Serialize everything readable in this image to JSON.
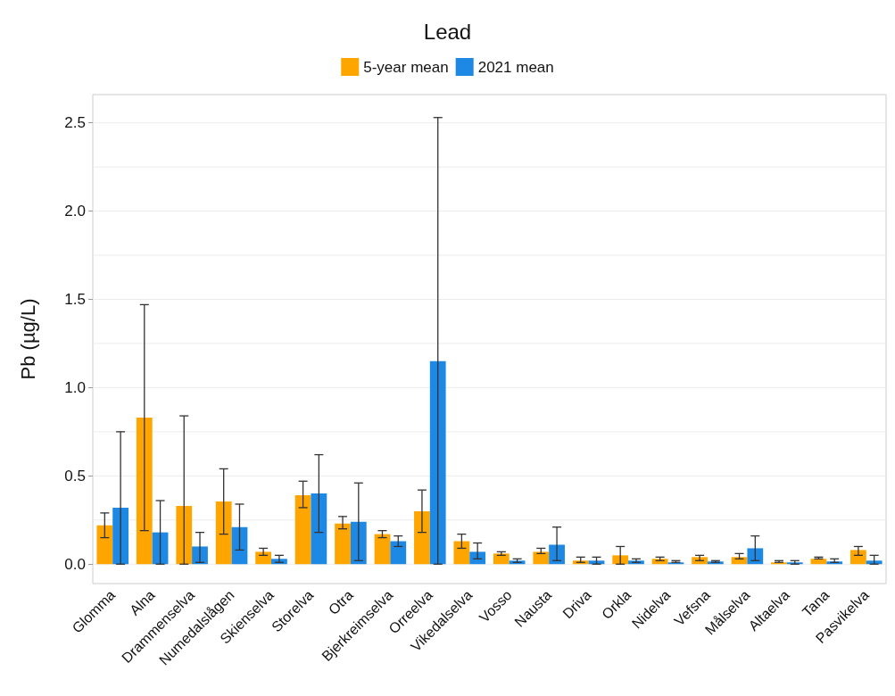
{
  "chart_data": {
    "type": "bar",
    "title": "Lead",
    "ylabel": "Pb (µg/L)",
    "categories": [
      "Glomma",
      "Alna",
      "Drammenselva",
      "Numedalslågen",
      "Skienselva",
      "Storelva",
      "Otra",
      "Bjerkreimselva",
      "Orreelva",
      "Vikedalselva",
      "Vosso",
      "Nausta",
      "Driva",
      "Orkla",
      "Nidelva",
      "Vefsna",
      "Målselva",
      "Altaelva",
      "Tana",
      "Pasvikelva"
    ],
    "series": [
      {
        "name": "5-year mean",
        "color": "#ffa500",
        "values": [
          0.22,
          0.83,
          0.33,
          0.355,
          0.07,
          0.39,
          0.23,
          0.17,
          0.3,
          0.13,
          0.06,
          0.07,
          0.02,
          0.05,
          0.03,
          0.04,
          0.04,
          0.01,
          0.03,
          0.08
        ],
        "errors": [
          [
            0.15,
            0.29
          ],
          [
            0.19,
            1.47
          ],
          [
            0,
            0.84
          ],
          [
            0.17,
            0.54
          ],
          [
            0.05,
            0.09
          ],
          [
            0.32,
            0.47
          ],
          [
            0.2,
            0.27
          ],
          [
            0.15,
            0.19
          ],
          [
            0.18,
            0.42
          ],
          [
            0.09,
            0.17
          ],
          [
            0.05,
            0.07
          ],
          [
            0.06,
            0.09
          ],
          [
            0.01,
            0.04
          ],
          [
            0,
            0.1
          ],
          [
            0.02,
            0.04
          ],
          [
            0.02,
            0.05
          ],
          [
            0.03,
            0.06
          ],
          [
            0.01,
            0.02
          ],
          [
            0.03,
            0.04
          ],
          [
            0.05,
            0.1
          ]
        ]
      },
      {
        "name": "2021 mean",
        "color": "#1e88e5",
        "values": [
          0.32,
          0.18,
          0.1,
          0.21,
          0.03,
          0.4,
          0.24,
          0.13,
          1.15,
          0.07,
          0.02,
          0.11,
          0.02,
          0.02,
          0.01,
          0.015,
          0.09,
          0.01,
          0.015,
          0.02
        ],
        "errors": [
          [
            0,
            0.75
          ],
          [
            0,
            0.36
          ],
          [
            0.01,
            0.18
          ],
          [
            0.08,
            0.34
          ],
          [
            0.01,
            0.05
          ],
          [
            0.18,
            0.62
          ],
          [
            0.02,
            0.46
          ],
          [
            0.1,
            0.16
          ],
          [
            0,
            2.53
          ],
          [
            0.03,
            0.12
          ],
          [
            0.01,
            0.03
          ],
          [
            0.02,
            0.21
          ],
          [
            0,
            0.04
          ],
          [
            0.01,
            0.03
          ],
          [
            0.01,
            0.02
          ],
          [
            0.01,
            0.02
          ],
          [
            0.02,
            0.16
          ],
          [
            0,
            0.02
          ],
          [
            0.01,
            0.03
          ],
          [
            0,
            0.05
          ]
        ]
      }
    ],
    "ylim": [
      -0.11,
      2.66
    ],
    "yticks": [
      {
        "value": 0,
        "label": "0.0"
      },
      {
        "value": 0.25,
        "label": null
      },
      {
        "value": 0.5,
        "label": "0.5"
      },
      {
        "value": 0.75,
        "label": null
      },
      {
        "value": 1,
        "label": "1.0"
      },
      {
        "value": 1.25,
        "label": null
      },
      {
        "value": 1.5,
        "label": "1.5"
      },
      {
        "value": 1.75,
        "label": null
      },
      {
        "value": 2,
        "label": "2.0"
      },
      {
        "value": 2.25,
        "label": null
      },
      {
        "value": 2.5,
        "label": "2.5"
      }
    ],
    "grid": "y",
    "legend": "top"
  }
}
